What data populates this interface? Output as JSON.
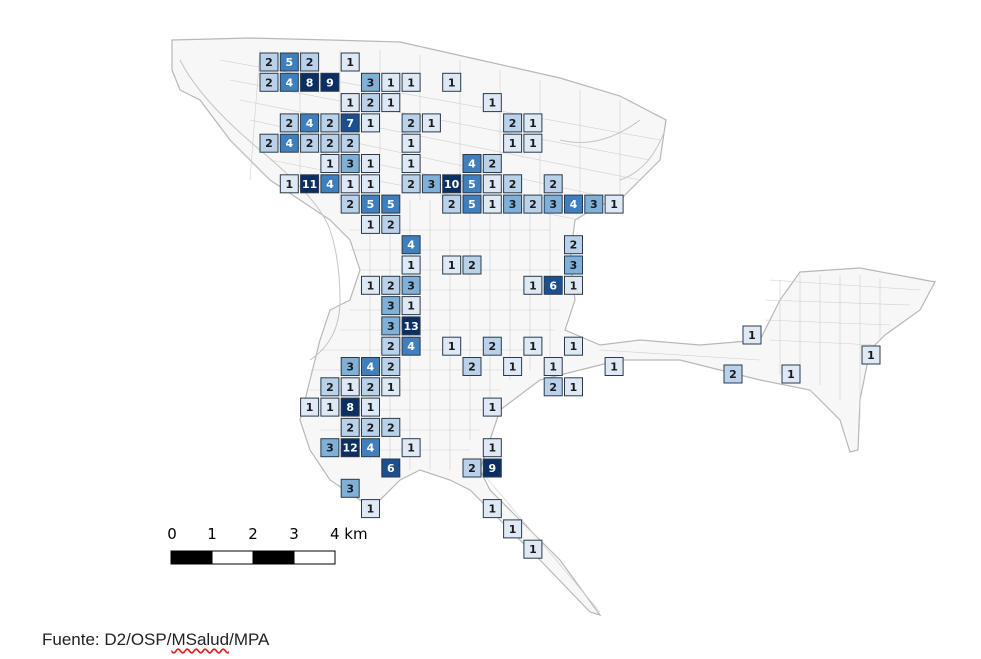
{
  "map": {
    "cell_counts": [
      [
        2,
        5,
        2,
        null,
        1,
        null,
        null,
        null,
        null,
        null,
        null,
        null,
        null,
        null,
        null,
        null,
        null,
        null
      ],
      [
        2,
        4,
        8,
        9,
        3,
        1,
        1,
        null,
        1,
        null,
        null,
        null,
        null,
        null,
        null,
        null,
        null,
        null
      ],
      [
        null,
        null,
        null,
        null,
        1,
        2,
        1,
        null,
        null,
        null,
        1,
        null,
        null,
        null,
        null,
        null,
        null,
        null
      ],
      [
        null,
        2,
        4,
        2,
        7,
        1,
        2,
        1,
        null,
        null,
        2,
        1,
        null,
        null,
        null,
        null,
        null,
        null
      ],
      [
        2,
        4,
        2,
        2,
        2,
        null,
        1,
        null,
        null,
        null,
        1,
        1,
        null,
        null,
        null,
        null,
        null,
        null
      ],
      [
        null,
        null,
        1,
        3,
        1,
        null,
        1,
        null,
        4,
        2,
        null,
        null,
        null,
        null,
        null,
        null,
        null,
        null
      ]
    ],
    "color_scale": [
      "#dfe9f5",
      "#b9d2ea",
      "#7fb0d8",
      "#3f7fbd",
      "#1c4f8f",
      "#0c2f63"
    ],
    "cells": [
      {
        "c": 0,
        "r": 0,
        "v": 2
      },
      {
        "c": 1,
        "r": 0,
        "v": 5
      },
      {
        "c": 2,
        "r": 0,
        "v": 2
      },
      {
        "c": 4,
        "r": 0,
        "v": 1
      },
      {
        "c": 0,
        "r": 1,
        "v": 2
      },
      {
        "c": 1,
        "r": 1,
        "v": 4
      },
      {
        "c": 2,
        "r": 1,
        "v": 8
      },
      {
        "c": 3,
        "r": 1,
        "v": 9
      },
      {
        "c": 5,
        "r": 1,
        "v": 3
      },
      {
        "c": 6,
        "r": 1,
        "v": 1
      },
      {
        "c": 7,
        "r": 1,
        "v": 1
      },
      {
        "c": 9,
        "r": 1,
        "v": 1
      },
      {
        "c": 4,
        "r": 2,
        "v": 1
      },
      {
        "c": 5,
        "r": 2,
        "v": 2
      },
      {
        "c": 6,
        "r": 2,
        "v": 1
      },
      {
        "c": 11,
        "r": 2,
        "v": 1
      },
      {
        "c": 1,
        "r": 3,
        "v": 2
      },
      {
        "c": 2,
        "r": 3,
        "v": 4
      },
      {
        "c": 3,
        "r": 3,
        "v": 2
      },
      {
        "c": 4,
        "r": 3,
        "v": 7
      },
      {
        "c": 5,
        "r": 3,
        "v": 1
      },
      {
        "c": 7,
        "r": 3,
        "v": 2
      },
      {
        "c": 8,
        "r": 3,
        "v": 1
      },
      {
        "c": 12,
        "r": 3,
        "v": 2
      },
      {
        "c": 13,
        "r": 3,
        "v": 1
      },
      {
        "c": 0,
        "r": 4,
        "v": 2
      },
      {
        "c": 1,
        "r": 4,
        "v": 4
      },
      {
        "c": 2,
        "r": 4,
        "v": 2
      },
      {
        "c": 3,
        "r": 4,
        "v": 2
      },
      {
        "c": 4,
        "r": 4,
        "v": 2
      },
      {
        "c": 7,
        "r": 4,
        "v": 1
      },
      {
        "c": 12,
        "r": 4,
        "v": 1
      },
      {
        "c": 13,
        "r": 4,
        "v": 1
      },
      {
        "c": 3,
        "r": 5,
        "v": 1
      },
      {
        "c": 4,
        "r": 5,
        "v": 3
      },
      {
        "c": 5,
        "r": 5,
        "v": 1
      },
      {
        "c": 7,
        "r": 5,
        "v": 1
      },
      {
        "c": 10,
        "r": 5,
        "v": 4
      },
      {
        "c": 11,
        "r": 5,
        "v": 2
      },
      {
        "c": 1,
        "r": 6,
        "v": 1
      },
      {
        "c": 2,
        "r": 6,
        "v": 11
      },
      {
        "c": 3,
        "r": 6,
        "v": 4
      },
      {
        "c": 4,
        "r": 6,
        "v": 1
      },
      {
        "c": 5,
        "r": 6,
        "v": 1
      },
      {
        "c": 7,
        "r": 6,
        "v": 2
      },
      {
        "c": 8,
        "r": 6,
        "v": 3
      },
      {
        "c": 9,
        "r": 6,
        "v": 10
      },
      {
        "c": 10,
        "r": 6,
        "v": 5
      },
      {
        "c": 11,
        "r": 6,
        "v": 1
      },
      {
        "c": 12,
        "r": 6,
        "v": 2
      },
      {
        "c": 14,
        "r": 6,
        "v": 2
      },
      {
        "c": 4,
        "r": 7,
        "v": 2
      },
      {
        "c": 5,
        "r": 7,
        "v": 5
      },
      {
        "c": 6,
        "r": 7,
        "v": 5
      },
      {
        "c": 9,
        "r": 7,
        "v": 2
      },
      {
        "c": 10,
        "r": 7,
        "v": 5
      },
      {
        "c": 11,
        "r": 7,
        "v": 1
      },
      {
        "c": 12,
        "r": 7,
        "v": 3
      },
      {
        "c": 13,
        "r": 7,
        "v": 2
      },
      {
        "c": 14,
        "r": 7,
        "v": 3
      },
      {
        "c": 15,
        "r": 7,
        "v": 4
      },
      {
        "c": 16,
        "r": 7,
        "v": 3
      },
      {
        "c": 17,
        "r": 7,
        "v": 1
      },
      {
        "c": 5,
        "r": 8,
        "v": 1
      },
      {
        "c": 6,
        "r": 8,
        "v": 2
      },
      {
        "c": 7,
        "r": 9,
        "v": 4
      },
      {
        "c": 15,
        "r": 9,
        "v": 2
      },
      {
        "c": 7,
        "r": 10,
        "v": 1
      },
      {
        "c": 9,
        "r": 10,
        "v": 1
      },
      {
        "c": 10,
        "r": 10,
        "v": 2
      },
      {
        "c": 15,
        "r": 10,
        "v": 3
      },
      {
        "c": 5,
        "r": 11,
        "v": 1
      },
      {
        "c": 6,
        "r": 11,
        "v": 2
      },
      {
        "c": 7,
        "r": 11,
        "v": 3
      },
      {
        "c": 13,
        "r": 11,
        "v": 1
      },
      {
        "c": 14,
        "r": 11,
        "v": 6
      },
      {
        "c": 15,
        "r": 11,
        "v": 1
      },
      {
        "c": 6,
        "r": 12,
        "v": 3
      },
      {
        "c": 7,
        "r": 12,
        "v": 1
      },
      {
        "c": 6,
        "r": 13,
        "v": 3
      },
      {
        "c": 7,
        "r": 13,
        "v": 13
      },
      {
        "c": 6,
        "r": 14,
        "v": 2
      },
      {
        "c": 7,
        "r": 14,
        "v": 4
      },
      {
        "c": 9,
        "r": 14,
        "v": 1
      },
      {
        "c": 11,
        "r": 14,
        "v": 2
      },
      {
        "c": 13,
        "r": 14,
        "v": 1
      },
      {
        "c": 15,
        "r": 14,
        "v": 1
      },
      {
        "c": 4,
        "r": 15,
        "v": 3
      },
      {
        "c": 5,
        "r": 15,
        "v": 4
      },
      {
        "c": 6,
        "r": 15,
        "v": 2
      },
      {
        "c": 10,
        "r": 15,
        "v": 2
      },
      {
        "c": 12,
        "r": 15,
        "v": 1
      },
      {
        "c": 14,
        "r": 15,
        "v": 1
      },
      {
        "c": 17,
        "r": 15,
        "v": 1
      },
      {
        "c": 3,
        "r": 16,
        "v": 2
      },
      {
        "c": 4,
        "r": 16,
        "v": 1
      },
      {
        "c": 5,
        "r": 16,
        "v": 2
      },
      {
        "c": 6,
        "r": 16,
        "v": 1
      },
      {
        "c": 14,
        "r": 16,
        "v": 2
      },
      {
        "c": 15,
        "r": 16,
        "v": 1
      },
      {
        "c": 2,
        "r": 17,
        "v": 1
      },
      {
        "c": 3,
        "r": 17,
        "v": 1
      },
      {
        "c": 4,
        "r": 17,
        "v": 8
      },
      {
        "c": 5,
        "r": 17,
        "v": 1
      },
      {
        "c": 11,
        "r": 17,
        "v": 1
      },
      {
        "c": 4,
        "r": 18,
        "v": 2
      },
      {
        "c": 5,
        "r": 18,
        "v": 2
      },
      {
        "c": 6,
        "r": 18,
        "v": 2
      },
      {
        "c": 3,
        "r": 19,
        "v": 3
      },
      {
        "c": 4,
        "r": 19,
        "v": 12
      },
      {
        "c": 5,
        "r": 19,
        "v": 4
      },
      {
        "c": 7,
        "r": 19,
        "v": 1
      },
      {
        "c": 11,
        "r": 19,
        "v": 1
      },
      {
        "c": 6,
        "r": 20,
        "v": 6
      },
      {
        "c": 10,
        "r": 20,
        "v": 2
      },
      {
        "c": 11,
        "r": 20,
        "v": 9
      },
      {
        "c": 4,
        "r": 21,
        "v": 3
      },
      {
        "c": 5,
        "r": 22,
        "v": 1
      },
      {
        "c": 11,
        "r": 22,
        "v": 1
      },
      {
        "c": 12,
        "r": 23,
        "v": 1
      },
      {
        "c": 13,
        "r": 24,
        "v": 1
      }
    ],
    "east_cells": [
      {
        "pos": "a",
        "v": 1
      },
      {
        "pos": "b",
        "v": 2
      },
      {
        "pos": "c",
        "v": 1
      },
      {
        "pos": "d",
        "v": 1
      }
    ]
  },
  "scale_bar": {
    "ticks": [
      "0",
      "1",
      "2",
      "3",
      "4 km"
    ]
  },
  "source": {
    "prefix": "Fuente: D2/OSP/",
    "underlined": "MSalud",
    "suffix": "/MPA"
  }
}
